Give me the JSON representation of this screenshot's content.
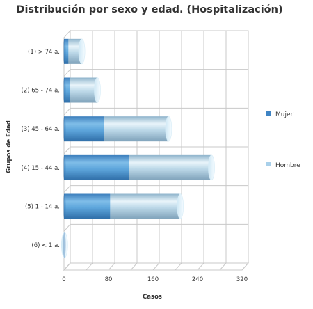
{
  "chart_data": {
    "type": "bar",
    "orientation": "horizontal",
    "stacked": true,
    "title": "Distribución por sexo y edad. (Hospitalización)",
    "xlabel": "Casos",
    "ylabel": "Grupos de Edad",
    "categories": [
      "(1) > 74 a.",
      "(2) 65 - 74 a.",
      "(3) 45 - 64 a.",
      "(4) 15 - 44 a.",
      "(5) 1 - 14 a.",
      "(6) < 1 a."
    ],
    "series": [
      {
        "name": "Mujer",
        "values": [
          8,
          10,
          72,
          117,
          83,
          0
        ],
        "color": "#4a90cc"
      },
      {
        "name": "Hombre",
        "values": [
          24,
          50,
          116,
          148,
          126,
          1
        ],
        "color": "#a9d0ea"
      }
    ],
    "xlim": [
      0,
      320
    ],
    "xticks": [
      0,
      80,
      160,
      240,
      320
    ],
    "grid": true,
    "legend_position": "right"
  }
}
